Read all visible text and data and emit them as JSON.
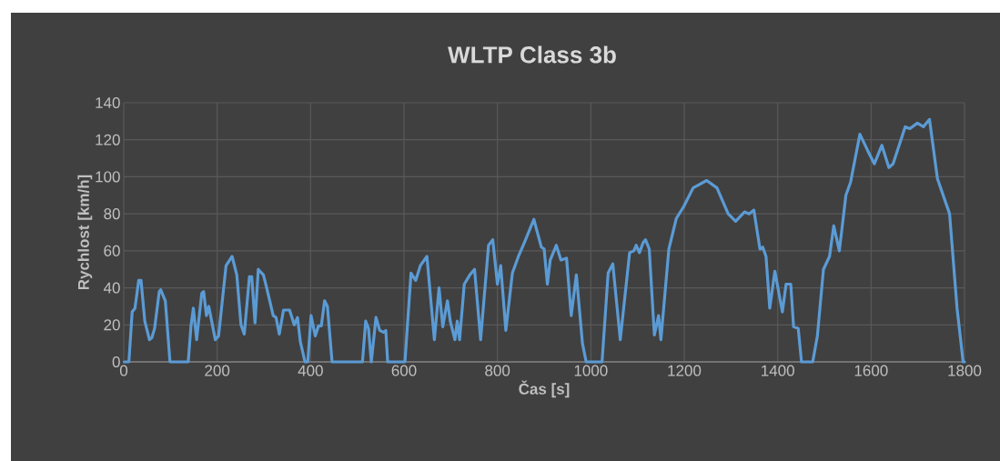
{
  "chart_data": {
    "type": "line",
    "title": "WLTP Class 3b",
    "xlabel": "Čas [s]",
    "ylabel": "Rychlost [km/h]",
    "x": [
      1,
      11,
      18,
      24,
      32,
      37,
      45,
      55,
      60,
      66,
      76,
      79,
      89,
      99,
      138,
      144,
      149,
      156,
      167,
      171,
      177,
      182,
      196,
      203,
      219,
      232,
      242,
      251,
      258,
      269,
      274,
      281,
      288,
      299,
      306,
      320,
      326,
      333,
      342,
      355,
      365,
      372,
      378,
      388,
      394,
      401,
      410,
      417,
      423,
      430,
      436,
      446,
      511,
      518,
      524,
      530,
      540,
      548,
      556,
      561,
      565,
      599,
      602,
      615,
      625,
      635,
      649,
      665,
      675,
      683,
      693,
      699,
      709,
      714,
      719,
      729,
      741,
      751,
      764,
      781,
      790,
      800,
      807,
      818,
      832,
      845,
      857,
      878,
      894,
      900,
      907,
      913,
      926,
      936,
      948,
      958,
      969,
      982,
      990,
      1024,
      1037,
      1047,
      1063,
      1083,
      1092,
      1097,
      1104,
      1112,
      1117,
      1125,
      1136,
      1145,
      1150,
      1167,
      1183,
      1199,
      1219,
      1248,
      1270,
      1294,
      1310,
      1329,
      1339,
      1349,
      1362,
      1368,
      1375,
      1383,
      1394,
      1410,
      1418,
      1428,
      1434,
      1444,
      1451,
      1475,
      1485,
      1498,
      1511,
      1520,
      1532,
      1546,
      1556,
      1576,
      1593,
      1607,
      1623,
      1638,
      1647,
      1673,
      1683,
      1699,
      1712,
      1725,
      1742,
      1768,
      1784,
      1797,
      1800
    ],
    "values": [
      0,
      0,
      27,
      29,
      44,
      44,
      22,
      12,
      13,
      18,
      38,
      39,
      33,
      0,
      0,
      19.5,
      29,
      12,
      37,
      38,
      25,
      30,
      12,
      14,
      52,
      57,
      47,
      20,
      15,
      46,
      46,
      21,
      50,
      47,
      40,
      25,
      24,
      15,
      28,
      28,
      20,
      24,
      11,
      0,
      0,
      25,
      14,
      19.5,
      19.5,
      33,
      30,
      0,
      0,
      22,
      18,
      0,
      24,
      17,
      16,
      17,
      0,
      0,
      0,
      48,
      44,
      52,
      57,
      12,
      40,
      19,
      33,
      22,
      12,
      22,
      12,
      42,
      47,
      50,
      12,
      63,
      66,
      42,
      52,
      17,
      48,
      57,
      64,
      77,
      62,
      61,
      42,
      55,
      63,
      55,
      56,
      25,
      47,
      10,
      0,
      0,
      48,
      53,
      12,
      59,
      60,
      63,
      59,
      64.5,
      66,
      61,
      14.5,
      25,
      12,
      61,
      77.5,
      84,
      94,
      98,
      94,
      80,
      76,
      81,
      80,
      82,
      61,
      62,
      57,
      29,
      49,
      27,
      42,
      42,
      19,
      18,
      0,
      0,
      14,
      50,
      57,
      73.5,
      60,
      90,
      97,
      123,
      114,
      107,
      117,
      105,
      107,
      127,
      126,
      129,
      127,
      131,
      99,
      80,
      29,
      0,
      0
    ],
    "color": "#5b9bd5",
    "line_style": "solid",
    "xlim": [
      0,
      1800
    ],
    "ylim": [
      0,
      140
    ],
    "xticks": [
      0,
      200,
      400,
      600,
      800,
      1000,
      1200,
      1400,
      1600,
      1800
    ],
    "yticks": [
      0,
      20,
      40,
      60,
      80,
      100,
      120,
      140
    ],
    "grid": true
  }
}
